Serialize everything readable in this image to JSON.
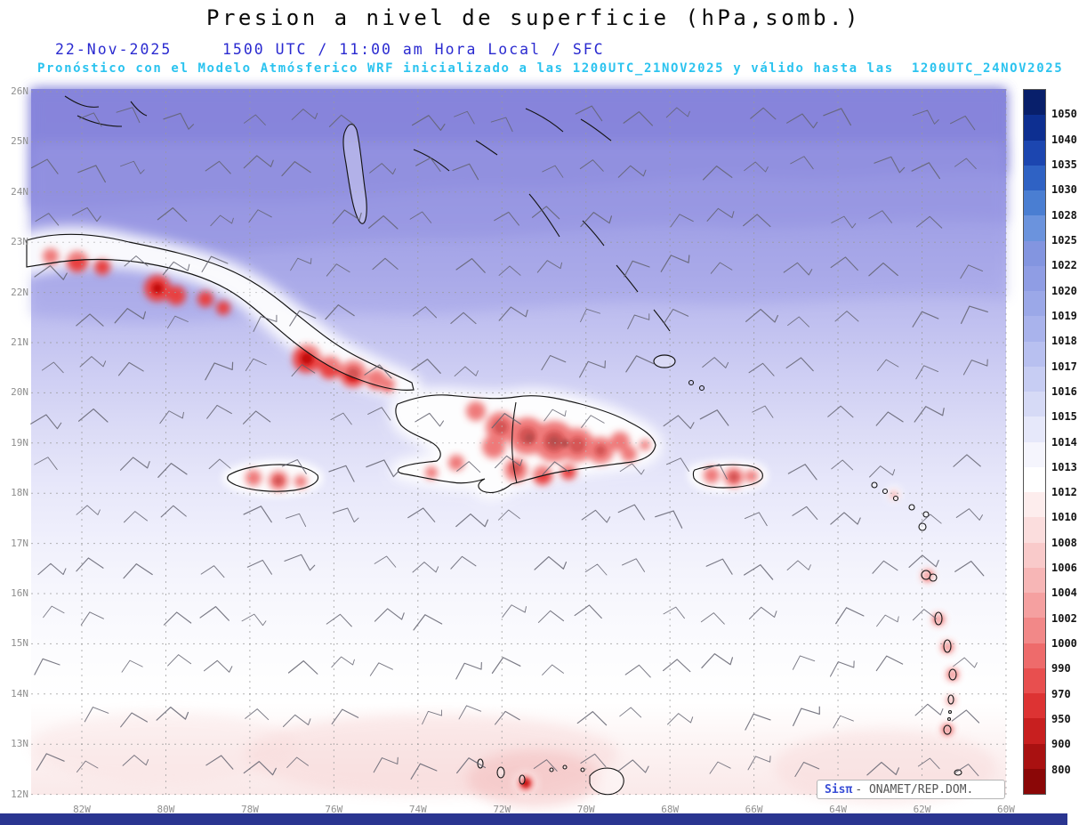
{
  "header": {
    "title": "Presion a nivel de superficie (hPa,somb.)",
    "date": "22-Nov-2025",
    "time_line": "1500 UTC / 11:00 am Hora Local / SFC",
    "forecast_line": "Pronóstico con el Modelo Atmósferico WRF inicializado a las 1200UTC_21NOV2025 y válido hasta las  1200UTC_24NOV2025"
  },
  "map": {
    "lat_labels": [
      "26N",
      "25N",
      "24N",
      "23N",
      "22N",
      "21N",
      "20N",
      "19N",
      "18N",
      "17N",
      "16N",
      "15N",
      "14N",
      "13N",
      "12N"
    ],
    "lon_labels": [
      "82W",
      "80W",
      "78W",
      "76W",
      "74W",
      "72W",
      "70W",
      "68W",
      "66W",
      "64W",
      "62W",
      "60W"
    ]
  },
  "colorbar": {
    "labels": [
      "1050",
      "1040",
      "1035",
      "1030",
      "1028",
      "1025",
      "1022",
      "1020",
      "1019",
      "1018",
      "1017",
      "1016",
      "1015",
      "1014",
      "1013",
      "1012",
      "1010",
      "1008",
      "1006",
      "1004",
      "1002",
      "1000",
      "990",
      "970",
      "950",
      "900",
      "800"
    ],
    "colors": [
      "#081f6b",
      "#0d2f91",
      "#1c46b0",
      "#2f62c4",
      "#4a7ed2",
      "#6b93dd",
      "#8395e0",
      "#8f9de4",
      "#9ba8e8",
      "#a9b3ec",
      "#b8c0f0",
      "#c7cdf3",
      "#d6daf6",
      "#e6e8fa",
      "#f5f5fd",
      "#ffffff",
      "#fdeded",
      "#fbdddd",
      "#f9caca",
      "#f7b6b6",
      "#f5a0a0",
      "#f28888",
      "#ee6b6b",
      "#e84f4f",
      "#dd3333",
      "#c81f1f",
      "#a91111",
      "#8b0707"
    ]
  },
  "watermark": {
    "brand": "Sisπ",
    "org": "- ONAMET/REP.DOM."
  },
  "chart_data": {
    "type": "heatmap",
    "title": "Presion a nivel de superficie (hPa,somb.)",
    "x_ticks": [
      "82W",
      "80W",
      "78W",
      "76W",
      "74W",
      "72W",
      "70W",
      "68W",
      "66W",
      "64W",
      "62W",
      "60W"
    ],
    "y_ticks": [
      "26N",
      "25N",
      "24N",
      "23N",
      "22N",
      "21N",
      "20N",
      "19N",
      "18N",
      "17N",
      "16N",
      "15N",
      "14N",
      "13N",
      "12N"
    ],
    "colorbar_levels_hPa": [
      1050,
      1040,
      1035,
      1030,
      1028,
      1025,
      1022,
      1020,
      1019,
      1018,
      1017,
      1016,
      1015,
      1014,
      1013,
      1012,
      1010,
      1008,
      1006,
      1004,
      1002,
      1000,
      990,
      970,
      950,
      900,
      800
    ],
    "legend_units": "hPa"
  }
}
